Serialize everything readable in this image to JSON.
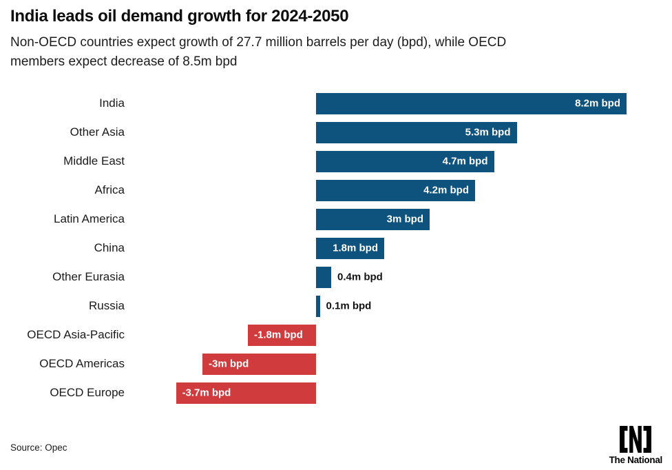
{
  "header": {
    "title": "India leads oil demand growth for 2024-2050",
    "subtitle_line1": "Non-OECD countries expect growth of 27.7 million barrels per day (bpd), while OECD",
    "subtitle_line2": "members expect decrease of 8.5m bpd"
  },
  "chart_data": {
    "type": "bar",
    "orientation": "horizontal",
    "title": "India leads oil demand growth for 2024-2050",
    "categories": [
      "India",
      "Other Asia",
      "Middle East",
      "Africa",
      "Latin America",
      "China",
      "Other Eurasia",
      "Russia",
      "OECD Asia-Pacific",
      "OECD Americas",
      "OECD Europe"
    ],
    "values": [
      8.2,
      5.3,
      4.7,
      4.2,
      3,
      1.8,
      0.4,
      0.1,
      -1.8,
      -3,
      -3.7
    ],
    "value_labels": [
      "8.2m bpd",
      "5.3m bpd",
      "4.7m bpd",
      "4.2m bpd",
      "3m bpd",
      "1.8m bpd",
      "0.4m bpd",
      "0.1m bpd",
      "-1.8m bpd",
      "-3m bpd",
      "-3.7m bpd"
    ],
    "unit": "m bpd",
    "xlim": [
      -5,
      9.2
    ],
    "grid": false,
    "legend": false,
    "positive_color": "#0e527e",
    "negative_color": "#d03b3d",
    "inside_label_color": "#ffffff",
    "outside_label_color": "#111111"
  },
  "footer": {
    "source": "Source: Opec",
    "logo_text": "The National",
    "logo_icon": "the-national-n-logo"
  }
}
